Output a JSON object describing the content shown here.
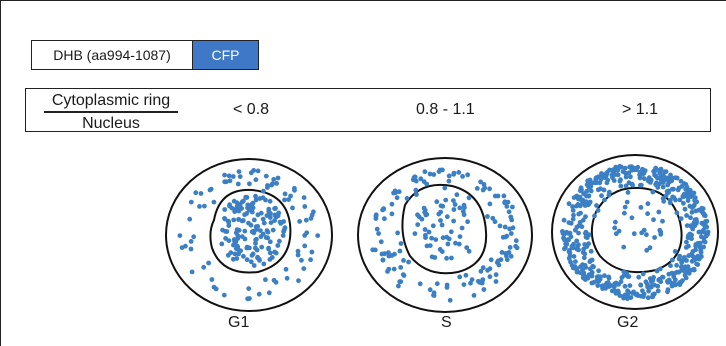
{
  "construct": {
    "domain_label": "DHB (aa994-1087)",
    "tag_label": "CFP",
    "tag_color": "#3f78c6"
  },
  "ratio": {
    "numerator": "Cytoplasmic ring",
    "denominator": "Nucleus",
    "ranges": [
      "< 0.8",
      "0.8 - 1.1",
      "> 1.1"
    ]
  },
  "phases": [
    "G1",
    "S",
    "G2"
  ],
  "dot_color": "#3b7fc4"
}
